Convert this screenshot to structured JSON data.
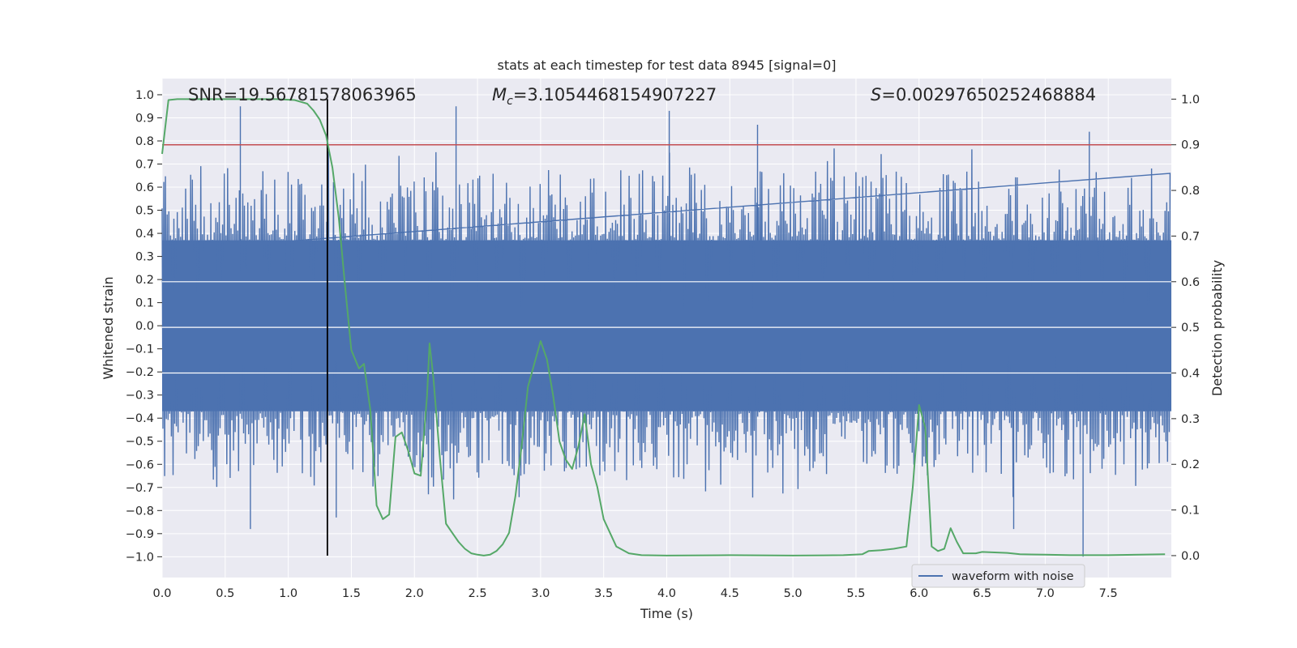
{
  "colors": {
    "background": "#eaeaf2",
    "grid": "#ffffff",
    "waveform": "#4c72b0",
    "probability": "#55a868",
    "threshold": "#c44e52",
    "marker": "#000000"
  },
  "chart_data": {
    "type": "line",
    "title": "stats at each timestep for test data 8945 [signal=0]",
    "xlabel": "Time (s)",
    "ylabel_left": "Whitened strain",
    "ylabel_right": "Detection probability",
    "xlim": [
      0.0,
      8.0
    ],
    "ylim_left": [
      -1.09,
      1.07
    ],
    "ylim_right": [
      -0.048,
      1.045
    ],
    "grid": true,
    "x_tick_labels": [
      "0.0",
      "0.5",
      "1.0",
      "1.5",
      "2.0",
      "2.5",
      "3.0",
      "3.5",
      "4.0",
      "4.5",
      "5.0",
      "5.5",
      "6.0",
      "6.5",
      "7.0",
      "7.5"
    ],
    "y_left_tick_labels": [
      "1.0",
      "0.9",
      "0.8",
      "0.7",
      "0.6",
      "0.5",
      "0.4",
      "0.3",
      "0.2",
      "0.1",
      "0.0",
      "-0.1",
      "-0.2",
      "-0.3",
      "-0.4",
      "-0.5",
      "-0.6",
      "-0.7",
      "-0.8",
      "-0.9",
      "-1.0"
    ],
    "y_right_tick_labels": [
      "1.0",
      "0.9",
      "0.8",
      "0.7",
      "0.6",
      "0.5",
      "0.4",
      "0.3",
      "0.2",
      "0.1",
      "0.0"
    ],
    "annotations": {
      "snr": "SNR=19.56781578063965",
      "mc_symbol": "M",
      "mc_sub": "c",
      "mc_value": "=3.1054468154907227",
      "s_symbol": "S",
      "s_value": "=0.00297650252468884"
    },
    "legend": {
      "label": "waveform with noise",
      "position": "lower-right"
    },
    "vertical_marker_x": 1.31,
    "threshold_probability": 0.9,
    "waveform_envelope": {
      "core_amplitude": 0.37,
      "typical_peak": 0.55,
      "max_peak": 0.95,
      "min_trough": -1.0,
      "notable_peaks": [
        {
          "t": 0.62,
          "v": 0.95
        },
        {
          "t": 2.33,
          "v": 0.95
        },
        {
          "t": 4.02,
          "v": 0.93
        },
        {
          "t": 4.72,
          "v": 0.87
        },
        {
          "t": 7.35,
          "v": 0.84
        }
      ],
      "notable_troughs": [
        {
          "t": 0.7,
          "v": -0.88
        },
        {
          "t": 1.38,
          "v": -0.83
        },
        {
          "t": 6.75,
          "v": -0.88
        },
        {
          "t": 7.3,
          "v": -1.0
        }
      ]
    },
    "series": [
      {
        "name": "detection probability",
        "axis": "right",
        "x": [
          0.0,
          0.05,
          0.12,
          0.3,
          0.6,
          0.9,
          1.05,
          1.15,
          1.2,
          1.25,
          1.3,
          1.35,
          1.4,
          1.45,
          1.5,
          1.56,
          1.6,
          1.65,
          1.7,
          1.75,
          1.8,
          1.85,
          1.9,
          1.95,
          2.0,
          2.05,
          2.1,
          2.12,
          2.15,
          2.2,
          2.25,
          2.3,
          2.35,
          2.4,
          2.45,
          2.5,
          2.55,
          2.6,
          2.65,
          2.7,
          2.75,
          2.8,
          2.85,
          2.9,
          2.95,
          3.0,
          3.05,
          3.1,
          3.15,
          3.2,
          3.25,
          3.3,
          3.35,
          3.4,
          3.45,
          3.5,
          3.6,
          3.7,
          3.8,
          4.0,
          4.5,
          5.0,
          5.4,
          5.55,
          5.6,
          5.7,
          5.8,
          5.9,
          5.95,
          6.0,
          6.05,
          6.1,
          6.15,
          6.2,
          6.25,
          6.3,
          6.35,
          6.45,
          6.5,
          6.6,
          6.7,
          6.8,
          7.0,
          7.2,
          7.5,
          7.95
        ],
        "values": [
          0.88,
          0.998,
          1.0,
          1.0,
          1.0,
          1.0,
          0.998,
          0.99,
          0.975,
          0.955,
          0.92,
          0.85,
          0.74,
          0.59,
          0.45,
          0.41,
          0.42,
          0.32,
          0.11,
          0.08,
          0.09,
          0.26,
          0.27,
          0.23,
          0.18,
          0.175,
          0.35,
          0.465,
          0.39,
          0.22,
          0.07,
          0.05,
          0.03,
          0.015,
          0.005,
          0.002,
          0.0,
          0.002,
          0.01,
          0.025,
          0.05,
          0.13,
          0.24,
          0.37,
          0.42,
          0.47,
          0.43,
          0.35,
          0.25,
          0.21,
          0.19,
          0.24,
          0.31,
          0.2,
          0.15,
          0.08,
          0.02,
          0.005,
          0.001,
          0.0,
          0.001,
          0.0,
          0.001,
          0.003,
          0.01,
          0.012,
          0.015,
          0.02,
          0.15,
          0.33,
          0.28,
          0.02,
          0.01,
          0.015,
          0.06,
          0.03,
          0.005,
          0.005,
          0.008,
          0.007,
          0.006,
          0.003,
          0.002,
          0.001,
          0.001,
          0.003
        ]
      }
    ]
  }
}
